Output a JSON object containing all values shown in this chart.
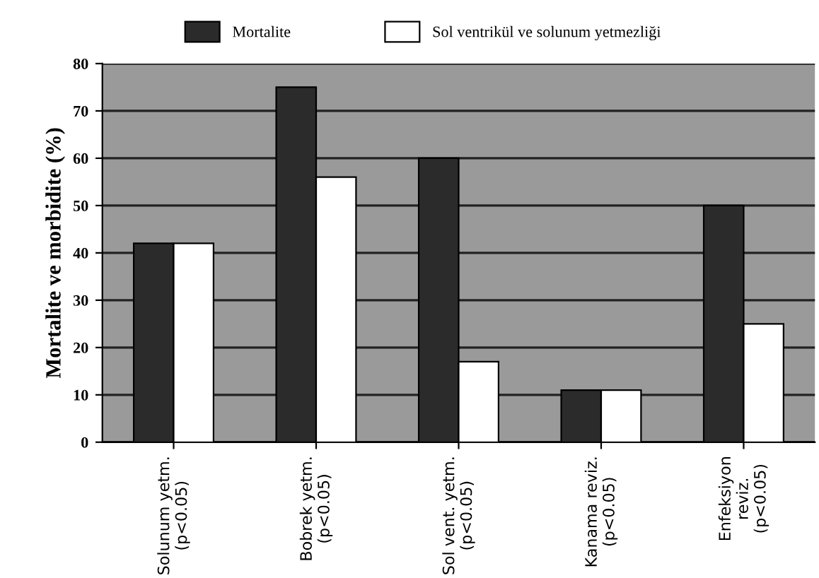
{
  "chart_data": {
    "type": "bar",
    "ylabel": "Mortalite ve morbidite (%)",
    "categories": [
      "Solunum yetm.\n(p<0.05)",
      "Bobrek yetm.\n(p<0.05)",
      "Sol vent. yetm.\n(p<0.05)",
      "Kanama reviz.\n(p<0.05)",
      "Enfeksiyon\nreviz.\n(p<0.05)"
    ],
    "series": [
      {
        "name": "Mortalite",
        "color": "#2b2b2b",
        "values": [
          42,
          75,
          60,
          11,
          50
        ]
      },
      {
        "name": "Sol ventrikül ve solunum yetmezliği",
        "color": "#ffffff",
        "values": [
          42,
          56,
          17,
          11,
          25
        ]
      }
    ],
    "ylim": [
      0,
      80
    ],
    "yticks": [
      0,
      10,
      20,
      30,
      40,
      50,
      60,
      70,
      80
    ],
    "grid": "y",
    "legend": "top"
  }
}
